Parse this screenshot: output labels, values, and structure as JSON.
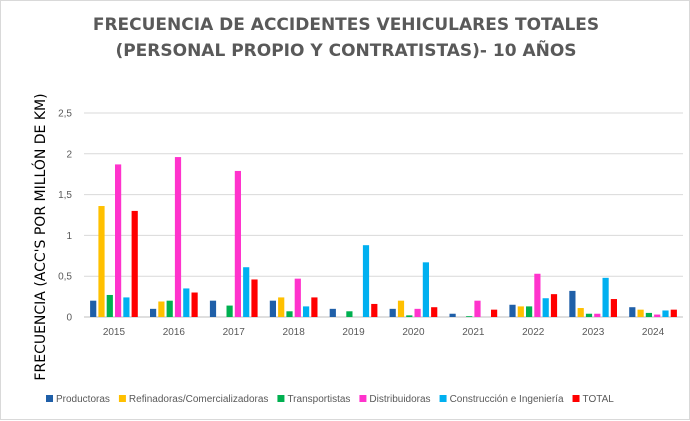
{
  "chart_data": {
    "type": "bar",
    "title": [
      "FRECUENCIA DE ACCIDENTES VEHICULARES TOTALES",
      "(PERSONAL PROPIO Y CONTRATISTAS)-  10 AÑOS"
    ],
    "xlabel": "",
    "ylabel": "FRECUENCIA (ACC'S POR MILLÓN DE KM)",
    "ylim": [
      0,
      2.5
    ],
    "yticks": [
      {
        "value": 0,
        "label": "0"
      },
      {
        "value": 0.5,
        "label": "0,5"
      },
      {
        "value": 1,
        "label": "1"
      },
      {
        "value": 1.5,
        "label": "1,5"
      },
      {
        "value": 2,
        "label": "2"
      },
      {
        "value": 2.5,
        "label": "2,5"
      }
    ],
    "grid": true,
    "legend_position": "bottom",
    "categories": [
      "2015",
      "2016",
      "2017",
      "2018",
      "2019",
      "2020",
      "2021",
      "2022",
      "2023",
      "2024"
    ],
    "series": [
      {
        "name": "Productoras",
        "color": "#1f5fa8",
        "values": [
          0.2,
          0.1,
          0.2,
          0.2,
          0.1,
          0.1,
          0.04,
          0.15,
          0.32,
          0.12
        ]
      },
      {
        "name": "Refinadoras/Comercializadoras",
        "color": "#ffc000",
        "values": [
          1.36,
          0.19,
          0.0,
          0.24,
          0.0,
          0.2,
          0.0,
          0.13,
          0.11,
          0.09
        ]
      },
      {
        "name": "Transportistas",
        "color": "#00b050",
        "values": [
          0.27,
          0.2,
          0.14,
          0.07,
          0.07,
          0.02,
          0.01,
          0.13,
          0.04,
          0.05
        ]
      },
      {
        "name": "Distribuidoras",
        "color": "#ff33cc",
        "values": [
          1.87,
          1.96,
          1.79,
          0.47,
          0.0,
          0.1,
          0.2,
          0.53,
          0.04,
          0.03
        ]
      },
      {
        "name": "Construcción e Ingeniería",
        "color": "#00b0f0",
        "values": [
          0.24,
          0.35,
          0.61,
          0.13,
          0.88,
          0.67,
          0.0,
          0.23,
          0.48,
          0.08
        ]
      },
      {
        "name": "TOTAL",
        "color": "#ff0000",
        "values": [
          1.3,
          0.3,
          0.46,
          0.24,
          0.16,
          0.12,
          0.09,
          0.28,
          0.22,
          0.09
        ]
      }
    ]
  }
}
